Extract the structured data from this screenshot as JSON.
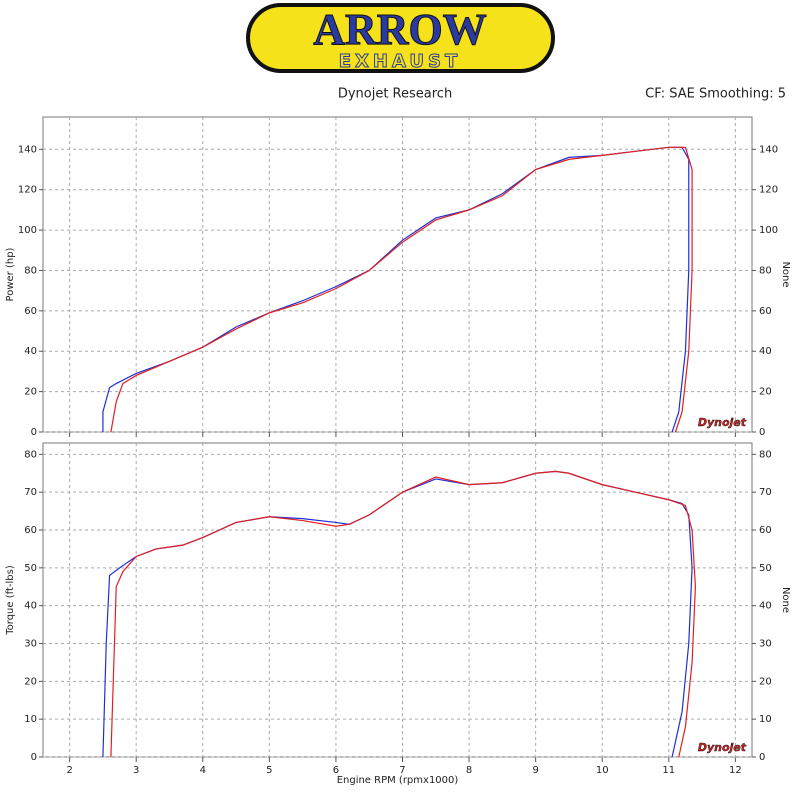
{
  "logo": {
    "text": "ARROW",
    "subtext": "EXHAUST"
  },
  "header": {
    "left": "Dynojet Research",
    "right": "CF: SAE Smoothing: 5"
  },
  "watermark": "Dynojet",
  "chart_data": [
    {
      "type": "line",
      "ylabel": "Power (hp)",
      "y2label": "None",
      "xlim": [
        1.6,
        12.25
      ],
      "xticks": [
        2,
        3,
        4,
        5,
        6,
        7,
        8,
        9,
        10,
        11,
        12
      ],
      "show_x_tick_labels": false,
      "ylim": [
        0,
        156
      ],
      "yticks": [
        0,
        20,
        40,
        60,
        80,
        100,
        120,
        140
      ],
      "y2lim": [
        0,
        156
      ],
      "y2ticks": [
        0,
        20,
        40,
        60,
        80,
        100,
        120,
        140
      ],
      "grid": true,
      "series": [
        {
          "color": "#1f2fd6",
          "x": [
            2.5,
            2.5,
            2.6,
            2.7,
            3,
            3.5,
            4,
            4.5,
            5,
            5.5,
            6,
            6.5,
            7,
            7.5,
            8,
            8.5,
            9,
            9.5,
            10,
            10.5,
            11,
            11.2,
            11.3,
            11.3,
            11.25,
            11.15,
            11.05
          ],
          "values": [
            0,
            10,
            22,
            24,
            29,
            35,
            42,
            52,
            59,
            65,
            72,
            80,
            95,
            106,
            110,
            118,
            130,
            136,
            137,
            139,
            141,
            141,
            135,
            80,
            40,
            10,
            0
          ]
        },
        {
          "color": "#e02020",
          "x": [
            2.62,
            2.7,
            2.8,
            3,
            3.5,
            4,
            4.5,
            5,
            5.5,
            6,
            6.5,
            7,
            7.5,
            8,
            8.5,
            9,
            9.5,
            10,
            10.5,
            11,
            11.25,
            11.35,
            11.35,
            11.3,
            11.2,
            11.1
          ],
          "values": [
            0,
            15,
            24,
            28,
            35,
            42,
            51,
            59,
            64,
            71,
            80,
            94,
            105,
            110,
            117,
            130,
            135,
            137,
            139,
            141,
            141,
            130,
            80,
            40,
            10,
            0
          ]
        }
      ]
    },
    {
      "type": "line",
      "ylabel": "Torque (ft-lbs)",
      "y2label": "None",
      "xlabel": "Engine RPM (rpmx1000)",
      "xlim": [
        1.6,
        12.25
      ],
      "xticks": [
        2,
        3,
        4,
        5,
        6,
        7,
        8,
        9,
        10,
        11,
        12
      ],
      "show_x_tick_labels": true,
      "ylim": [
        0,
        83
      ],
      "yticks": [
        0,
        10,
        20,
        30,
        40,
        50,
        60,
        70,
        80
      ],
      "y2lim": [
        0,
        83
      ],
      "y2ticks": [
        0,
        10,
        20,
        30,
        40,
        50,
        60,
        70,
        80
      ],
      "grid": true,
      "series": [
        {
          "color": "#1f2fd6",
          "x": [
            2.5,
            2.55,
            2.6,
            2.75,
            3,
            3.3,
            3.7,
            4,
            4.5,
            5,
            5.5,
            6,
            6.2,
            6.5,
            7,
            7.5,
            8,
            8.5,
            9,
            9.3,
            9.5,
            10,
            10.5,
            11,
            11.2,
            11.3,
            11.35,
            11.3,
            11.2,
            11.05
          ],
          "values": [
            0,
            30,
            48,
            50,
            53,
            55,
            56,
            58,
            62,
            63.5,
            63,
            62,
            61.5,
            64,
            70,
            73.5,
            72,
            72.5,
            75,
            75.5,
            75,
            72,
            70,
            68,
            67,
            64,
            50,
            30,
            12,
            0
          ]
        },
        {
          "color": "#e02020",
          "x": [
            2.62,
            2.7,
            2.8,
            3,
            3.3,
            3.7,
            4,
            4.5,
            5,
            5.5,
            6,
            6.2,
            6.5,
            7,
            7.5,
            8,
            8.5,
            9,
            9.3,
            9.5,
            10,
            10.5,
            11,
            11.25,
            11.35,
            11.4,
            11.35,
            11.25,
            11.15
          ],
          "values": [
            0,
            45,
            49,
            53,
            55,
            56,
            58,
            62,
            63.5,
            62.5,
            61,
            61.5,
            64,
            70,
            74,
            72,
            72.5,
            75,
            75.5,
            75,
            72,
            70,
            68,
            66.5,
            60,
            45,
            25,
            8,
            0
          ]
        }
      ]
    }
  ]
}
